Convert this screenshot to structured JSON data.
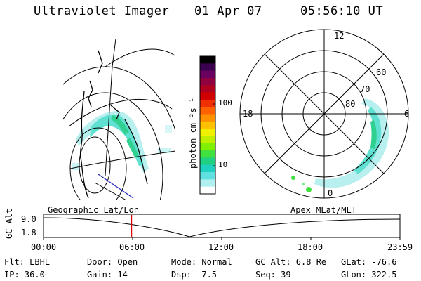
{
  "header": {
    "instrument": "Ultraviolet Imager",
    "date": "01 Apr 07",
    "time": "05:56:10 UT"
  },
  "colorbar": {
    "label": "photon cm⁻²s⁻¹",
    "ticks": [
      "100",
      "10"
    ],
    "colors": [
      "#000000",
      "#3b0050",
      "#6a0060",
      "#900040",
      "#b00020",
      "#d00000",
      "#f03000",
      "#ff6000",
      "#ff9000",
      "#ffc000",
      "#f0f000",
      "#c0f000",
      "#80f000",
      "#40e040",
      "#20d080",
      "#20d0c0",
      "#60e0e0",
      "#b0f0f0",
      "#ffffff"
    ]
  },
  "left_panel": {
    "title": "Geographic Lat/Lon"
  },
  "right_panel": {
    "title": "Apex MLat/MLT",
    "mlt_labels": {
      "top": "12",
      "left": "18",
      "right": "6",
      "bottom": "0"
    },
    "lat_labels": [
      "60",
      "70",
      "80"
    ]
  },
  "timeline": {
    "ylabel": "GC Alt",
    "y_ticks": [
      "9.0",
      "1.8"
    ],
    "x_ticks": [
      "00:00",
      "06:00",
      "12:00",
      "18:00",
      "23:59"
    ],
    "current_time_fraction": 0.2473,
    "marker_color": "#e00000"
  },
  "status": {
    "flt": "Flt: LBHL",
    "ip": "IP: 36.0",
    "door": "Door: Open",
    "gain": "Gain: 14",
    "mode": "Mode: Normal",
    "dsp": "Dsp:   -7.5",
    "gcalt": "GC Alt: 6.8 Re",
    "seq": "Seq: 39",
    "glat": "GLat: -76.6",
    "glon": "GLon: 322.5"
  }
}
